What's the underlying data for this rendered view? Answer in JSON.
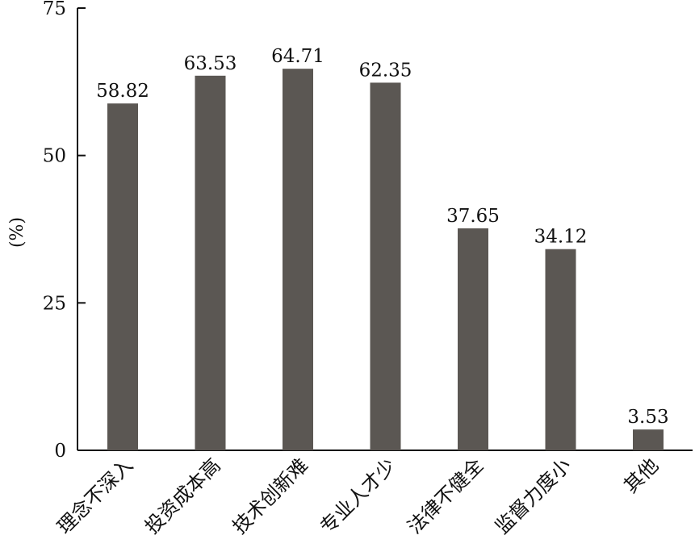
{
  "chart_data": {
    "type": "bar",
    "title": "",
    "xlabel": "",
    "ylabel": "(%)",
    "ylim": [
      0,
      75
    ],
    "yticks": [
      0,
      25,
      50,
      75
    ],
    "grid": false,
    "bar_color": "#5b5753",
    "categories": [
      "理念不深入",
      "投资成本高",
      "技术创新难",
      "专业人才少",
      "法律不健全",
      "监督力度小",
      "其他"
    ],
    "values": [
      58.82,
      63.53,
      64.71,
      62.35,
      37.65,
      34.12,
      3.53
    ],
    "value_labels": [
      "58.82",
      "63.53",
      "64.71",
      "62.35",
      "37.65",
      "34.12",
      "3.53"
    ]
  }
}
